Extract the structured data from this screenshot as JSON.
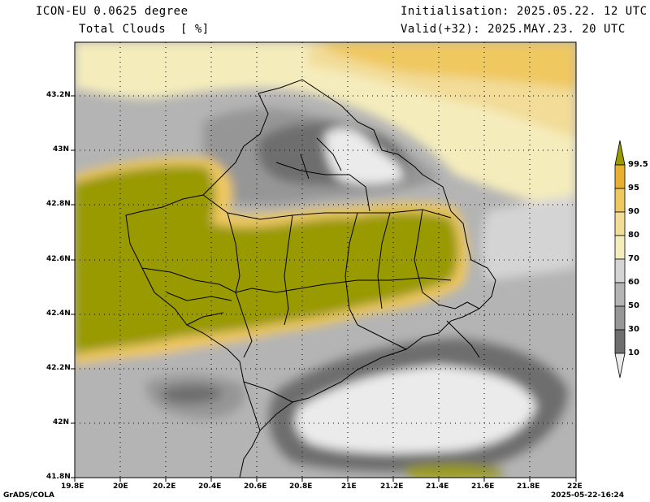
{
  "header": {
    "model_line": "ICON-EU 0.0625 degree",
    "field_line": "Total Clouds  [ %]",
    "init_line": "Initialisation: 2025.05.22. 12 UTC",
    "valid_line": "Valid(+32): 2025.MAY.23. 20 UTC"
  },
  "axes": {
    "lon_ticks": [
      "19.8E",
      "20E",
      "20.2E",
      "20.4E",
      "20.6E",
      "20.8E",
      "21E",
      "21.2E",
      "21.4E",
      "21.6E",
      "21.8E",
      "22E"
    ],
    "lat_ticks": [
      "43.2N",
      "43N",
      "42.8N",
      "42.6N",
      "42.4N",
      "42.2N",
      "42N",
      "41.8N"
    ]
  },
  "colorbar": {
    "labels": [
      "99.5",
      "95",
      "90",
      "80",
      "70",
      "60",
      "50",
      "30",
      "10"
    ],
    "colors": {
      "above_99_5": "#999900",
      "95_99_5": "#e8b030",
      "90_95": "#f0c860",
      "80_90": "#f2dc98",
      "70_80": "#f5ecbc",
      "60_70": "#d4d4d4",
      "50_60": "#b4b4b4",
      "30_50": "#969696",
      "10_30": "#6e6e6e",
      "below_10": "#ebebeb"
    }
  },
  "footer": {
    "left": "GrADS/COLA",
    "right": "2025-05-22-16:24"
  }
}
